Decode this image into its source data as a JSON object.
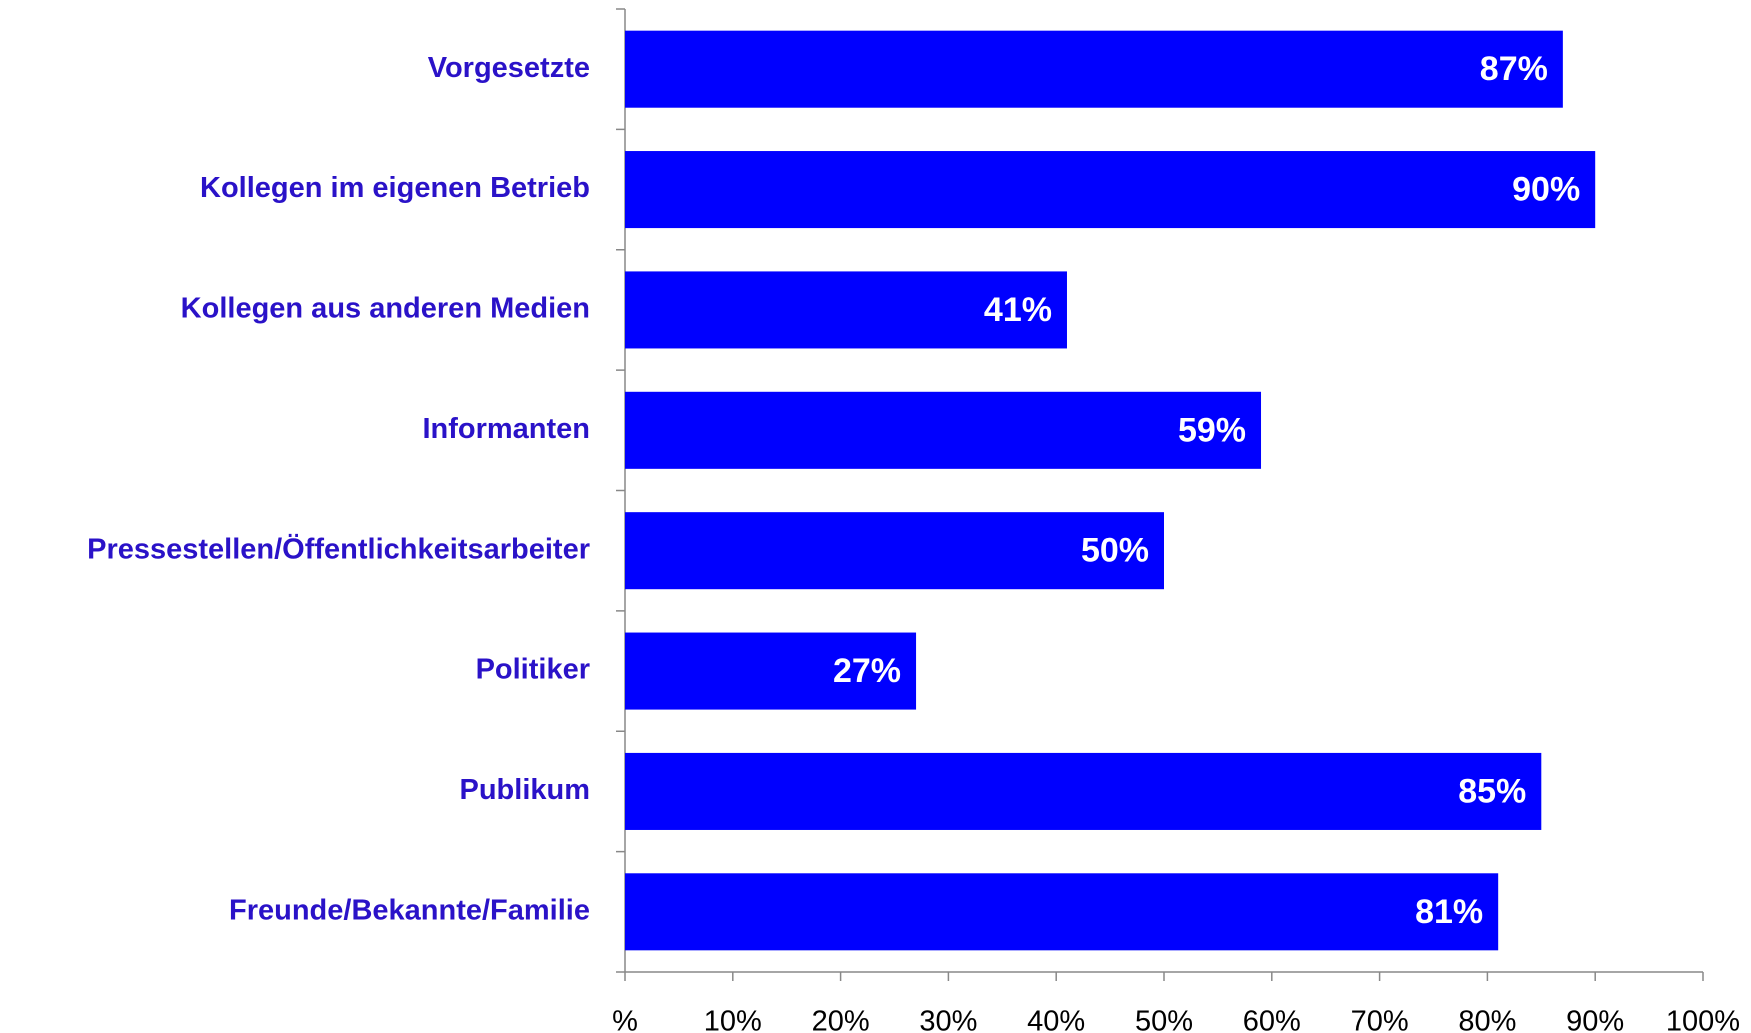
{
  "chart_data": {
    "type": "barh",
    "categories": [
      "Vorgesetzte",
      "Kollegen im eigenen Betrieb",
      "Kollegen aus anderen Medien",
      "Informanten",
      "Pressestellen/Öffentlichkeitsarbeiter",
      "Politiker",
      "Publikum",
      "Freunde/Bekannte/Familie"
    ],
    "values": [
      87,
      90,
      41,
      59,
      50,
      27,
      85,
      81
    ],
    "value_labels": [
      "87%",
      "90%",
      "41%",
      "59%",
      "50%",
      "27%",
      "85%",
      "81%"
    ],
    "color": "#0000ff",
    "label_color": "#2a12c8",
    "xlim": [
      0,
      100
    ],
    "xticks": [
      {
        "value": 0,
        "label": "%"
      },
      {
        "value": 10,
        "label": "10%"
      },
      {
        "value": 20,
        "label": "20%"
      },
      {
        "value": 30,
        "label": "30%"
      },
      {
        "value": 40,
        "label": "40%"
      },
      {
        "value": 50,
        "label": "50%"
      },
      {
        "value": 60,
        "label": "60%"
      },
      {
        "value": 70,
        "label": "70%"
      },
      {
        "value": 80,
        "label": "80%"
      },
      {
        "value": 90,
        "label": "90%"
      },
      {
        "value": 100,
        "label": "100%"
      }
    ],
    "grid": false
  }
}
